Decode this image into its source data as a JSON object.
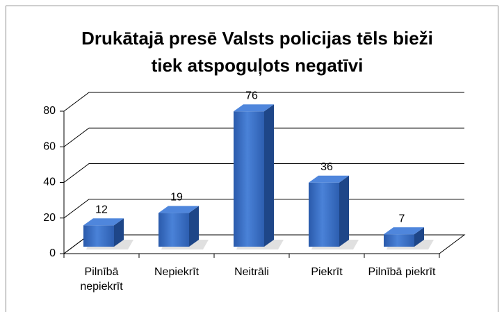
{
  "chart_data": {
    "type": "bar",
    "title": [
      "Drukātajā presē Valsts policijas tēls bieži",
      "tiek atspoguļots negatīvi"
    ],
    "categories": [
      "Pilnībā nepiekrīt",
      "Nepiekrīt",
      "Neitrāli",
      "Piekrīt",
      "Pilnībā piekrīt"
    ],
    "values": [
      12,
      19,
      76,
      36,
      7
    ],
    "color": "#3469c1",
    "ylim": [
      0,
      80
    ],
    "yticks": [
      0,
      20,
      40,
      60,
      80
    ],
    "grid": true
  }
}
